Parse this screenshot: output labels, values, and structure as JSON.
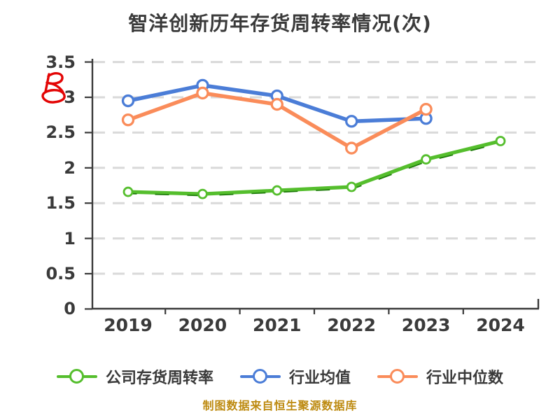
{
  "title": "智洋创新历年存货周转率情况(次)",
  "caption": "制图数据来自恒生聚源数据库",
  "colors": {
    "text": "#3a3a3a",
    "axis": "#3a3a3a",
    "gridline": "#d9d9d9",
    "background": "#ffffff",
    "caption_gold": "#bd8a10",
    "scribble_red": "#e30505",
    "company_green": "#55be2d",
    "company_green_dark": "#1c7a08",
    "industry_mean_blue": "#4b7dd7",
    "industry_median_orange": "#fa8c5a",
    "marker_fill": "#ffffff"
  },
  "annotation": {
    "name": "red-scribble-doodle",
    "color": "#e30505"
  },
  "legend": {
    "items": [
      {
        "label": "公司存货周转率",
        "color": "#55be2d"
      },
      {
        "label": "行业均值",
        "color": "#4b7dd7"
      },
      {
        "label": "行业中位数",
        "color": "#fa8c5a"
      }
    ]
  },
  "chart_data": {
    "type": "line",
    "title": "智洋创新历年存货周转率情况(次)",
    "xlabel": "",
    "ylabel": "",
    "categories": [
      "2019",
      "2020",
      "2021",
      "2022",
      "2023",
      "2024"
    ],
    "series": [
      {
        "name": "公司存货周转率",
        "color": "#55be2d",
        "style": "sketchy",
        "values": [
          1.66,
          1.63,
          1.68,
          1.73,
          2.12,
          2.38
        ]
      },
      {
        "name": "行业均值",
        "color": "#4b7dd7",
        "style": "solid",
        "values": [
          2.95,
          3.17,
          3.02,
          2.66,
          2.7,
          null
        ]
      },
      {
        "name": "行业中位数",
        "color": "#fa8c5a",
        "style": "solid",
        "values": [
          2.68,
          3.06,
          2.9,
          2.28,
          2.83,
          null
        ]
      }
    ],
    "ylim": [
      0,
      3.5
    ],
    "yticks": [
      0,
      0.5,
      1,
      1.5,
      2,
      2.5,
      3,
      3.5
    ],
    "ytick_labels": [
      "0",
      "0.5",
      "1",
      "1.5",
      "2",
      "2.5",
      "3",
      "3.5"
    ],
    "grid": "horizontal-dashed",
    "legend_position": "bottom"
  }
}
